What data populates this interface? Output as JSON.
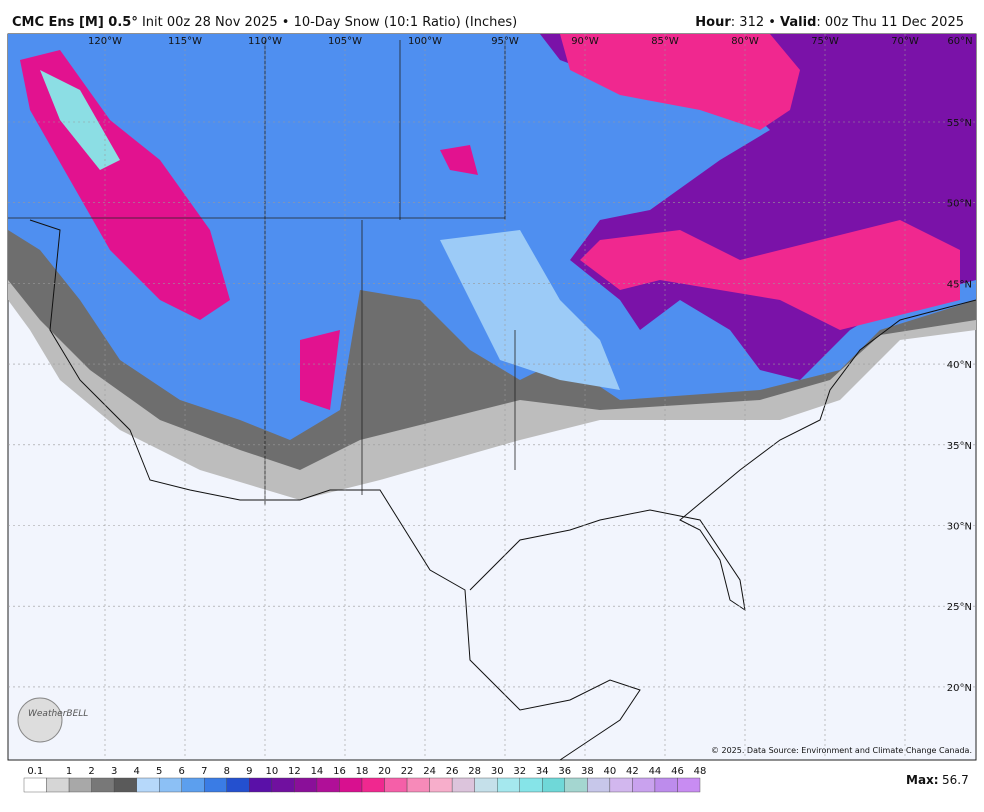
{
  "header": {
    "model": "CMC Ens [M] 0.5°",
    "init": "Init 00z 28 Nov 2025 • 10-Day Snow (10:1 Ratio) (Inches)",
    "hour_label": "Hour",
    "hour": ": 312 • ",
    "valid_label": "Valid",
    "valid": ": 00z Thu 11 Dec 2025"
  },
  "map": {
    "longitudes": [
      "120°W",
      "115°W",
      "110°W",
      "105°W",
      "100°W",
      "95°W",
      "90°W",
      "85°W",
      "80°W",
      "75°W",
      "70°W",
      "60°N"
    ],
    "latitudes": [
      "55°N",
      "50°N",
      "45°N",
      "40°N",
      "35°N",
      "30°N",
      "25°N",
      "20°N"
    ],
    "credit": "© 2025. Data Source: Environment and Climate Change Canada.",
    "logo": "WeatherBELL"
  },
  "colorbar": {
    "labels": [
      "0.1",
      "1",
      "2",
      "3",
      "4",
      "5",
      "6",
      "7",
      "8",
      "9",
      "10",
      "12",
      "14",
      "16",
      "18",
      "20",
      "22",
      "24",
      "26",
      "28",
      "30",
      "32",
      "34",
      "36",
      "38",
      "40",
      "42",
      "44",
      "46",
      "48"
    ],
    "colors": [
      "#ffffff",
      "#d6d6d6",
      "#a8a8a8",
      "#787878",
      "#5a5a5a",
      "#b6d8fa",
      "#8cc0f5",
      "#5c9fee",
      "#3a7ce5",
      "#2450cf",
      "#5a10a8",
      "#70109f",
      "#8a0f99",
      "#b00f98",
      "#d8108f",
      "#f0288f",
      "#f55fa8",
      "#f78ab9",
      "#f7aecb",
      "#dcc4dc",
      "#c5e0ea",
      "#a5e8ee",
      "#86e4e8",
      "#6fd8d8",
      "#a4d6d0",
      "#c7c7ea",
      "#d2b7ee",
      "#c9a2ee",
      "#bd8cec",
      "#c88cf2"
    ],
    "max_label": "Max:",
    "max": "56.7"
  }
}
